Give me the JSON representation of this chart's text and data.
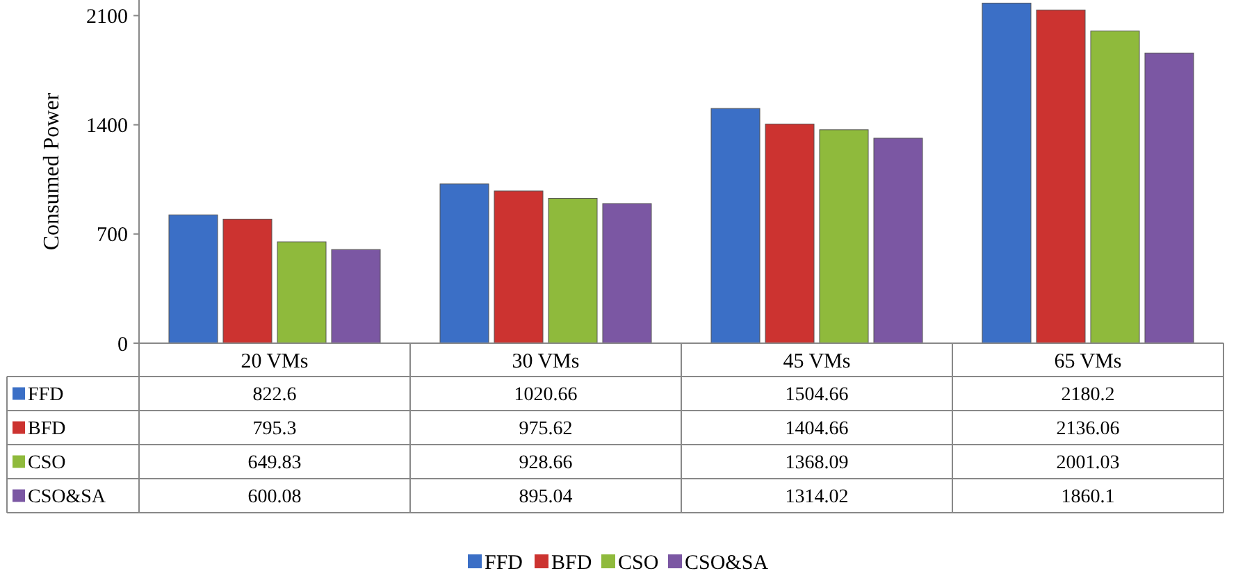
{
  "chart_data": {
    "type": "bar",
    "ylabel": "Consumed Power",
    "categories": [
      "20 VMs",
      "30 VMs",
      "45 VMs",
      "65 VMs"
    ],
    "series": [
      {
        "name": "FFD",
        "color": "#3b6fc6",
        "values": [
          822.6,
          1020.66,
          1504.66,
          2180.2
        ]
      },
      {
        "name": "BFD",
        "color": "#cc3330",
        "values": [
          795.3,
          975.62,
          1404.66,
          2136.06
        ]
      },
      {
        "name": "CSO",
        "color": "#8fba3c",
        "values": [
          649.83,
          928.66,
          1368.09,
          2001.03
        ]
      },
      {
        "name": "CSO&SA",
        "color": "#7b57a3",
        "values": [
          600.08,
          895.04,
          1314.02,
          1860.1
        ]
      }
    ],
    "ylim": [
      0,
      2200
    ],
    "yticks": [
      0,
      700,
      1400,
      2100
    ],
    "grid": false,
    "legend": "bottom",
    "data_labels": true
  }
}
